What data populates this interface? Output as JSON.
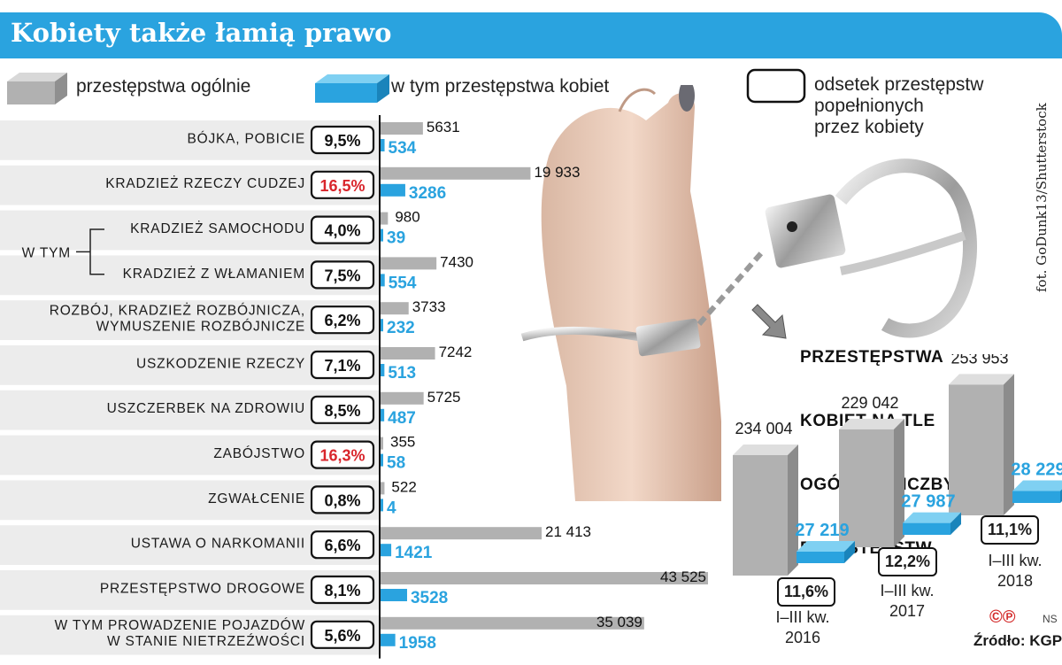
{
  "title": "Kobiety także łamią prawo",
  "legend": {
    "total": "przestępstwa ogólnie",
    "women": "w tym przestępstwa kobiet",
    "share_lines": [
      "odsetek przestępstw",
      "popełnionych",
      "przez kobiety"
    ]
  },
  "group_label": "W TYM",
  "credit": "fot. GoDunk13/Shutterstock",
  "source": "Źródło: KGP",
  "copyright_marks": "©℗",
  "copyright_suffix": "NS",
  "colors": {
    "accent_blue": "#2aa3df",
    "total_gray": "#b1b1b1",
    "highlight_red": "#d9262c"
  },
  "icons": [
    "handcuffs-photo",
    "arrow-down-right-icon"
  ],
  "chart_data": [
    {
      "type": "bar",
      "orientation": "horizontal",
      "series": [
        {
          "name": "przestępstwa ogólnie",
          "values": [
            5631,
            19933,
            980,
            7430,
            3733,
            7242,
            5725,
            355,
            522,
            21413,
            43525,
            35039
          ]
        },
        {
          "name": "w tym przestępstwa kobiet",
          "values": [
            534,
            3286,
            39,
            554,
            232,
            513,
            487,
            58,
            4,
            1421,
            3528,
            1958
          ]
        }
      ],
      "rows": [
        {
          "category": [
            "BÓJKA, POBICIE"
          ],
          "total": 5631,
          "women": 534,
          "total_label": "5631",
          "women_label": "534",
          "share": "9,5%",
          "highlight": false,
          "sub": false
        },
        {
          "category": [
            "KRADZIEŻ RZECZY CUDZEJ"
          ],
          "total": 19933,
          "women": 3286,
          "total_label": "19 933",
          "women_label": "3286",
          "share": "16,5%",
          "highlight": true,
          "sub": false
        },
        {
          "category": [
            "KRADZIEŻ SAMOCHODU"
          ],
          "total": 980,
          "women": 39,
          "total_label": "980",
          "women_label": "39",
          "share": "4,0%",
          "highlight": false,
          "sub": true
        },
        {
          "category": [
            "KRADZIEŻ Z WŁAMANIEM"
          ],
          "total": 7430,
          "women": 554,
          "total_label": "7430",
          "women_label": "554",
          "share": "7,5%",
          "highlight": false,
          "sub": true
        },
        {
          "category": [
            "ROZBÓJ, KRADZIEŻ ROZBÓJNICZA,",
            "WYMUSZENIE ROZBÓJNICZE"
          ],
          "total": 3733,
          "women": 232,
          "total_label": "3733",
          "women_label": "232",
          "share": "6,2%",
          "highlight": false,
          "sub": false
        },
        {
          "category": [
            "USZKODZENIE RZECZY"
          ],
          "total": 7242,
          "women": 513,
          "total_label": "7242",
          "women_label": "513",
          "share": "7,1%",
          "highlight": false,
          "sub": false
        },
        {
          "category": [
            "USZCZERBEK NA ZDROWIU"
          ],
          "total": 5725,
          "women": 487,
          "total_label": "5725",
          "women_label": "487",
          "share": "8,5%",
          "highlight": false,
          "sub": false
        },
        {
          "category": [
            "ZABÓJSTWO"
          ],
          "total": 355,
          "women": 58,
          "total_label": "355",
          "women_label": "58",
          "share": "16,3%",
          "highlight": true,
          "sub": false
        },
        {
          "category": [
            "ZGWAŁCENIE"
          ],
          "total": 522,
          "women": 4,
          "total_label": "522",
          "women_label": "4",
          "share": "0,8%",
          "highlight": false,
          "sub": false
        },
        {
          "category": [
            "USTAWA O NARKOMANII"
          ],
          "total": 21413,
          "women": 1421,
          "total_label": "21 413",
          "women_label": "1421",
          "share": "6,6%",
          "highlight": false,
          "sub": false
        },
        {
          "category": [
            "PRZESTĘPSTWO DROGOWE"
          ],
          "total": 43525,
          "women": 3528,
          "total_label": "43 525",
          "women_label": "3528",
          "share": "8,1%",
          "highlight": false,
          "sub": false
        },
        {
          "category": [
            "W TYM PROWADZENIE POJAZDÓW",
            "W STANIE NIETRZEŹWOŚCI"
          ],
          "total": 35039,
          "women": 1958,
          "total_label": "35 039",
          "women_label": "1958",
          "share": "5,6%",
          "highlight": false,
          "sub": false
        }
      ]
    },
    {
      "type": "bar",
      "title_lines": [
        "PRZESTĘPSTWA",
        "KOBIET NA TLE",
        "OGÓLNEJ LICZBY",
        "PRZESTEPSTW"
      ],
      "categories": [
        "I–III kw.\n2016",
        "I–III kw.\n2017",
        "I–III kw.\n2018"
      ],
      "series": [
        {
          "name": "przestępstwa ogólnie",
          "values": [
            234004,
            229042,
            253953
          ]
        },
        {
          "name": "w tym przestępstwa kobiet",
          "values": [
            27219,
            27987,
            28229
          ]
        }
      ],
      "total_labels": [
        "234 004",
        "229 042",
        "253 953"
      ],
      "women_labels": [
        "27 219",
        "27 987",
        "28 229"
      ],
      "shares": [
        "11,6%",
        "12,2%",
        "11,1%"
      ]
    }
  ]
}
